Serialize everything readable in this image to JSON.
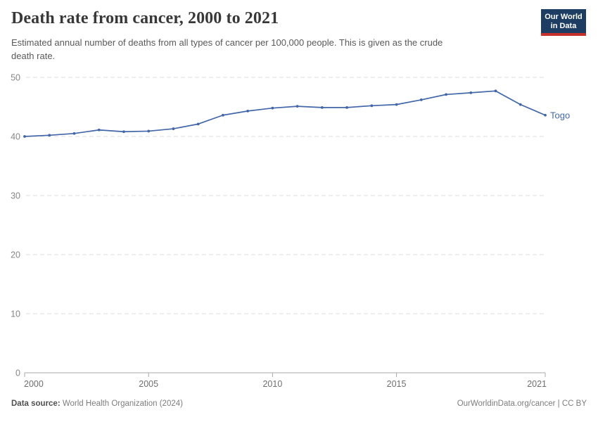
{
  "header": {
    "title": "Death rate from cancer, 2000 to 2021",
    "subtitle": "Estimated annual number of deaths from all types of cancer per 100,000 people. This is given as the crude\ndeath rate.",
    "logo": {
      "line1": "Our World",
      "line2": "in Data",
      "bg_color": "#1d3d63",
      "accent_color": "#c7302b"
    }
  },
  "chart_data": {
    "type": "line",
    "title": "Death rate from cancer, 2000 to 2021",
    "xlabel": "",
    "ylabel": "",
    "x": [
      2000,
      2001,
      2002,
      2003,
      2004,
      2005,
      2006,
      2007,
      2008,
      2009,
      2010,
      2011,
      2012,
      2013,
      2014,
      2015,
      2016,
      2017,
      2018,
      2019,
      2020,
      2021
    ],
    "series": [
      {
        "name": "Togo",
        "color": "#4266a8",
        "values": [
          40.0,
          40.2,
          40.5,
          41.1,
          40.8,
          40.9,
          41.3,
          42.1,
          43.6,
          44.3,
          44.8,
          45.1,
          44.9,
          44.9,
          45.2,
          45.4,
          46.2,
          47.1,
          47.4,
          47.7,
          45.4,
          43.6
        ]
      }
    ],
    "xlim": [
      2000,
      2021
    ],
    "ylim": [
      0,
      50
    ],
    "x_ticks": [
      2000,
      2005,
      2010,
      2015,
      2021
    ],
    "y_ticks": [
      0,
      10,
      20,
      30,
      40,
      50
    ],
    "grid": "horizontal-dashed",
    "legend_position": "line-end-label",
    "colors": {
      "grid": "#dcdcdc",
      "axis": "#a8a8a8",
      "x_tick_label": "#6e6e6e",
      "y_tick_label": "#878787"
    }
  },
  "footer": {
    "source_label": "Data source:",
    "source_value": " World Health Organization (2024)",
    "right_text": "OurWorldinData.org/cancer | CC BY"
  }
}
